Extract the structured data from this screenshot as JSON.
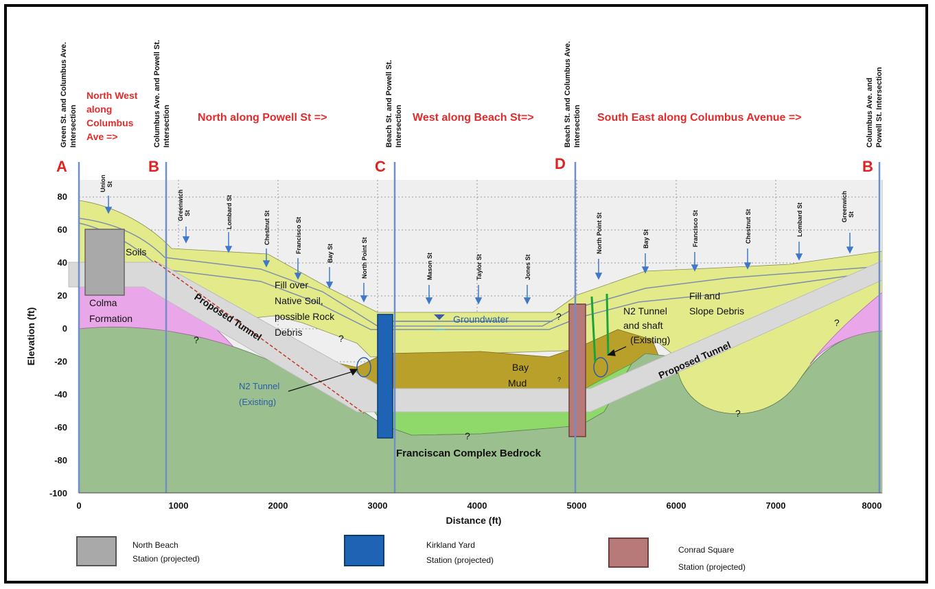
{
  "intersections": [
    {
      "letter": "A",
      "label_line1": "Green St. and Columbus Ave.",
      "label_line2": "Intersection"
    },
    {
      "letter": "B",
      "label_line1": "Columbus Ave. and Powell St.",
      "label_line2": "Intersection"
    },
    {
      "letter": "C",
      "label_line1": "Beach St. and Powell St.",
      "label_line2": "Intersection"
    },
    {
      "letter": "D",
      "label_line1": "Beach St. and Columbus Ave.",
      "label_line2": "Intersection"
    },
    {
      "letter": "B",
      "label_line1": "Columbus Ave. and",
      "label_line2": "Powell St. Intersection"
    }
  ],
  "directions": {
    "nw_line1": "North West",
    "nw_line2": "along",
    "nw_line3": "Columbus",
    "nw_line4": "Ave =>",
    "north": "North along Powell St =>",
    "west": "West  along Beach St=>",
    "southeast": "South East along Columbus Avenue =>"
  },
  "streets": {
    "union_a": "Union",
    "union_b": "St",
    "greenwich_a": "Greenwich",
    "greenwich_b": "St",
    "lombard": "Lombard St",
    "chestnut": "Chestnut St",
    "francisco": "Francisco St",
    "bay": "Bay St",
    "north_point": "North Point St",
    "mason": "Mason St",
    "taylor": "Taylor St",
    "jones": "Jones St",
    "north_point2": "North Point St",
    "bay2": "Bay St",
    "francisco2": "Francisco St",
    "chestnut2": "Chestnut St",
    "lombard2": "Lombard St",
    "greenwich2_a": "Greenwich",
    "greenwich2_b": "St"
  },
  "axes": {
    "ylabel": "Elevation (ft)",
    "xlabel": "Distance (ft)",
    "yticks": [
      "80",
      "60",
      "40",
      "20",
      "0",
      "-20",
      "-40",
      "-60",
      "-80",
      "-100"
    ],
    "xticks": [
      "0",
      "1000",
      "2000",
      "3000",
      "4000",
      "5000",
      "6000",
      "7000",
      "8000"
    ]
  },
  "labels": {
    "soils": "Soils",
    "colma1": "Colma",
    "colma2": "Formation",
    "proposed_tunnel": "Proposed Tunnel",
    "proposed_tunnel2": "Proposed Tunnel",
    "fill1": "Fill over",
    "fill2": "Native Soil,",
    "fill3": "possible Rock",
    "fill4": "Debris",
    "groundwater": "Groundwater",
    "n2_1": "N2 Tunnel",
    "n2_2": "(Existing)",
    "n2s_1": "N2 Tunnel",
    "n2s_2": "and shaft",
    "n2s_3": "(Existing)",
    "bay_mud1": "Bay",
    "bay_mud2": "Mud",
    "fill_slope1": "Fill and",
    "fill_slope2": "Slope Debris",
    "franciscan": "Franciscan Complex Bedrock",
    "q": "?"
  },
  "legend": [
    {
      "line1": "North Beach",
      "line2": "Station (projected)",
      "color": "#a9a9a9"
    },
    {
      "line1": "Kirkland Yard",
      "line2": "Station (projected)",
      "color": "#1f63b5"
    },
    {
      "line1": "Conrad Square",
      "line2": "Station (projected)",
      "color": "#b87a78"
    }
  ],
  "colors": {
    "bedrock": "#9bbf8f",
    "fill_yellow": "#e3ea8a",
    "bay_mud": "#b8a02a",
    "colma": "#e9a6e8",
    "light_green": "#8fd86a",
    "tunnel": "#d9d9d9",
    "accent_red": "#e0221f"
  }
}
